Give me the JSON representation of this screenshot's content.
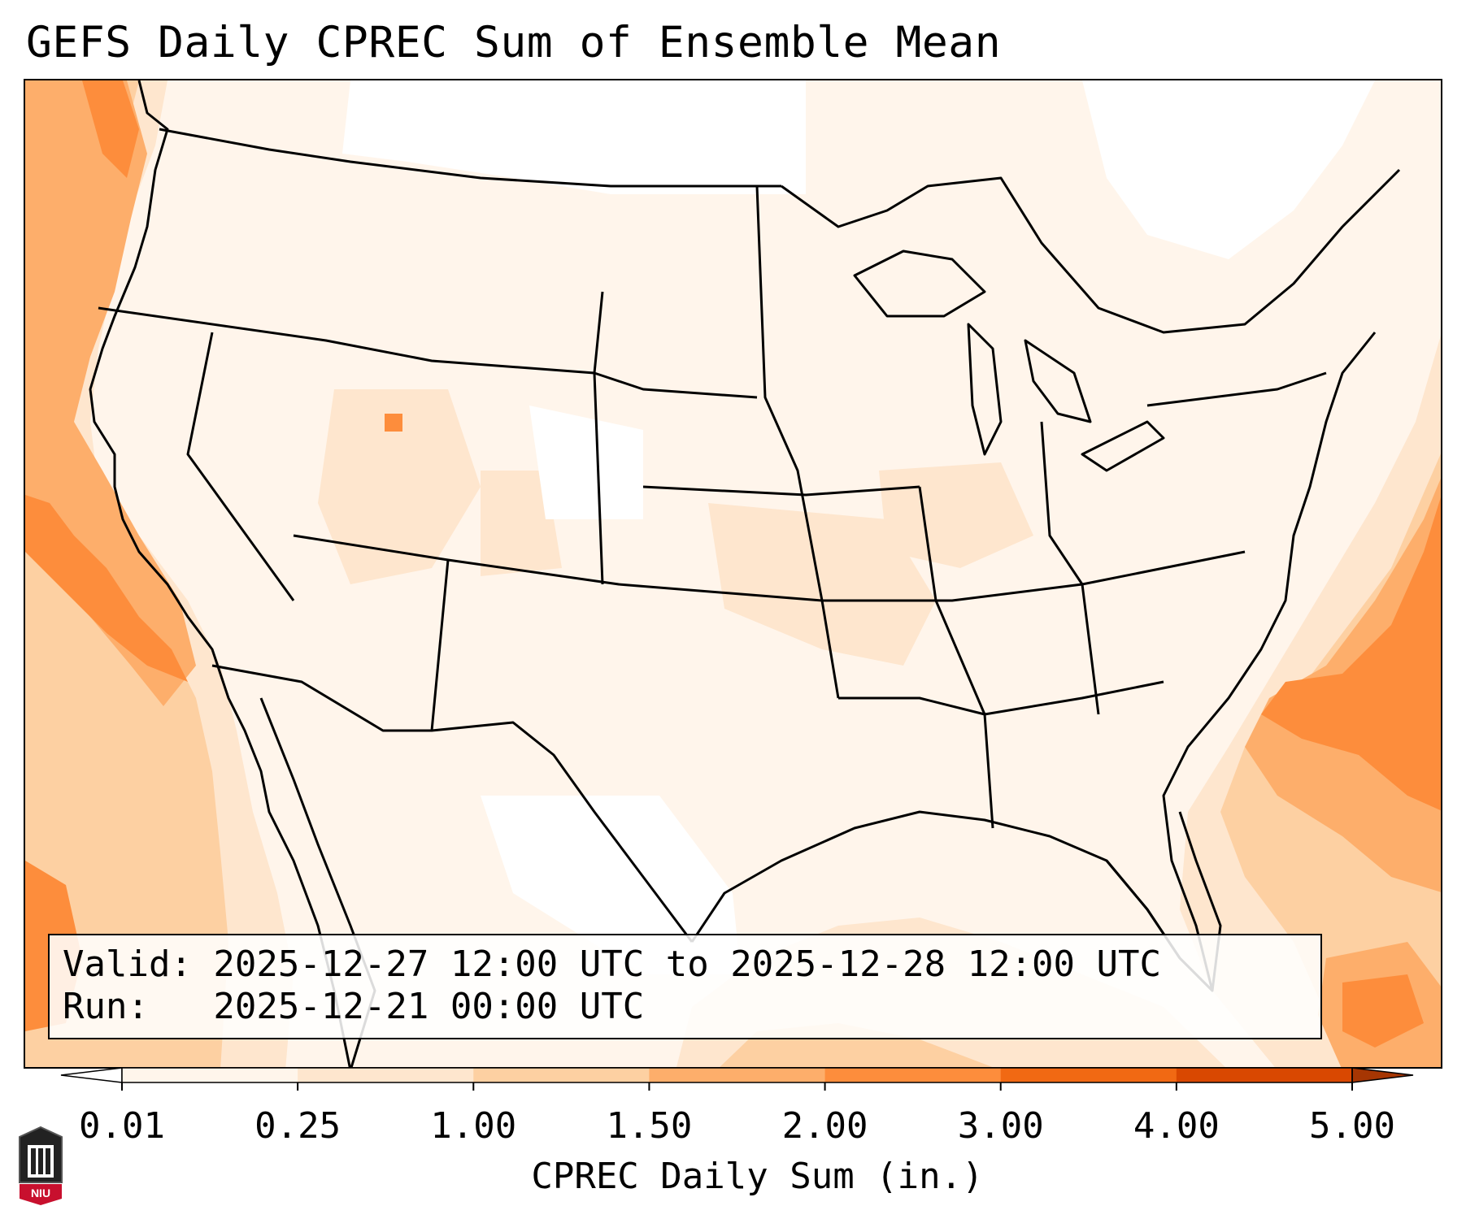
{
  "title": "GEFS Daily CPREC Sum of Ensemble Mean",
  "info": {
    "valid_text": "Valid: 2025-12-27 12:00 UTC to 2025-12-28 12:00 UTC",
    "run_text": "Run:   2025-12-21 00:00 UTC"
  },
  "colorbar": {
    "label": "CPREC Daily Sum (in.)",
    "ticks": [
      "0.01",
      "0.25",
      "1.00",
      "1.50",
      "2.00",
      "3.00",
      "4.00",
      "5.00"
    ],
    "colors": [
      "#fff5eb",
      "#fee6ce",
      "#fdd0a2",
      "#fdae6b",
      "#fd8d3c",
      "#f16913",
      "#d94801"
    ],
    "under_color": "#ffffff",
    "over_color": "#a63603",
    "extend": "both"
  },
  "logo": {
    "text": "NIU",
    "color": "#c8102e"
  }
}
